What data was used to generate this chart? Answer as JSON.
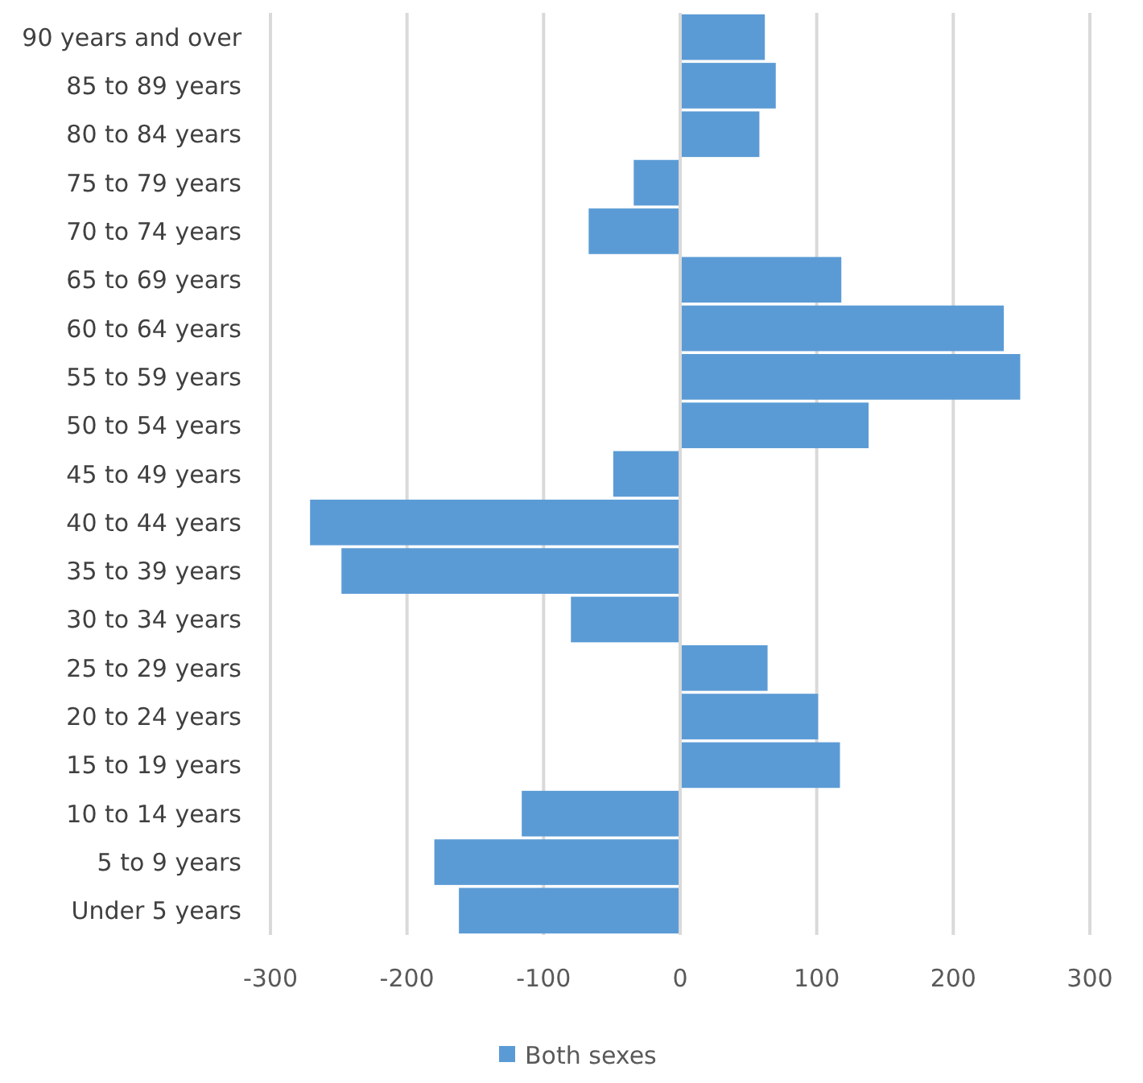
{
  "chart_data": {
    "type": "bar",
    "orientation": "horizontal",
    "categories": [
      "90 years and over",
      "85 to 89 years",
      "80 to 84 years",
      "75 to 79 years",
      "70 to 74 years",
      "65 to 69 years",
      "60 to 64 years",
      "55 to 59 years",
      "50 to 54 years",
      "45 to 49 years",
      "40 to 44 years",
      "35 to 39 years",
      "30 to 34 years",
      "25 to 29 years",
      "20 to 24 years",
      "15 to 19 years",
      "10 to 14 years",
      "5 to 9 years",
      "Under 5 years"
    ],
    "series": [
      {
        "name": "Both sexes",
        "color": "#5b9bd5",
        "values": [
          62,
          70,
          58,
          -34,
          -67,
          118,
          237,
          249,
          138,
          -49,
          -271,
          -248,
          -80,
          64,
          101,
          117,
          -116,
          -180,
          -162
        ]
      }
    ],
    "xlim": [
      -300,
      300
    ],
    "xticks": [
      -300,
      -200,
      -100,
      0,
      100,
      200,
      300
    ],
    "grid": "x",
    "legend": "bottom"
  }
}
